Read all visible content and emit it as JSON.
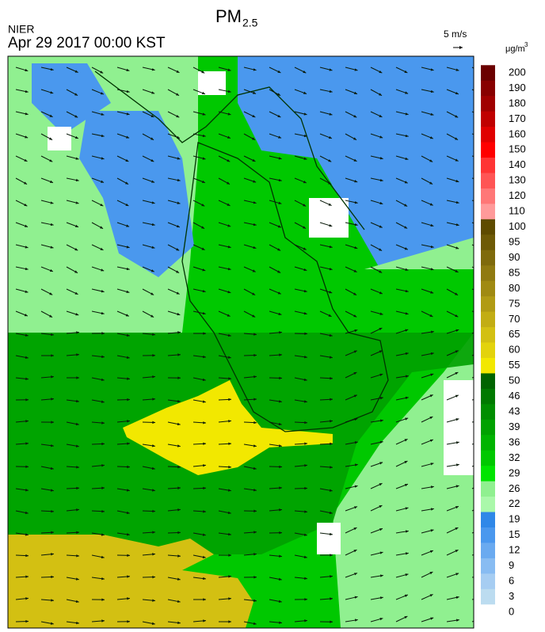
{
  "header": {
    "title": "PM",
    "title_subscript": "2.5",
    "agency": "NIER",
    "timestamp": "Apr 29 2017 00:00 KST",
    "wind_scale": "5 m/s"
  },
  "colorbar": {
    "unit": "μg/m",
    "unit_superscript": "3",
    "labels": [
      200,
      190,
      180,
      170,
      160,
      150,
      140,
      130,
      120,
      110,
      100,
      95,
      90,
      85,
      80,
      75,
      70,
      65,
      60,
      55,
      50,
      46,
      43,
      39,
      36,
      32,
      29,
      26,
      22,
      19,
      15,
      12,
      9,
      6,
      3,
      0
    ],
    "colors": [
      "#6b0000",
      "#880000",
      "#a00000",
      "#c00000",
      "#e00000",
      "#ff0000",
      "#ff3535",
      "#ff5555",
      "#ff7777",
      "#ff9a9a",
      "#5e4b00",
      "#6e5a06",
      "#7f6a0c",
      "#907a10",
      "#a08a12",
      "#b19b14",
      "#c2ad14",
      "#d3c012",
      "#e3d30c",
      "#f2e800",
      "#006400",
      "#007a00",
      "#008e00",
      "#00a200",
      "#00b400",
      "#00c800",
      "#00e400",
      "#90f090",
      "#aaf8aa",
      "#2f88e8",
      "#4a98ee",
      "#6aaaf0",
      "#88bcf2",
      "#a6cdf2",
      "#bcdcf0",
      "#ffffff"
    ]
  }
}
